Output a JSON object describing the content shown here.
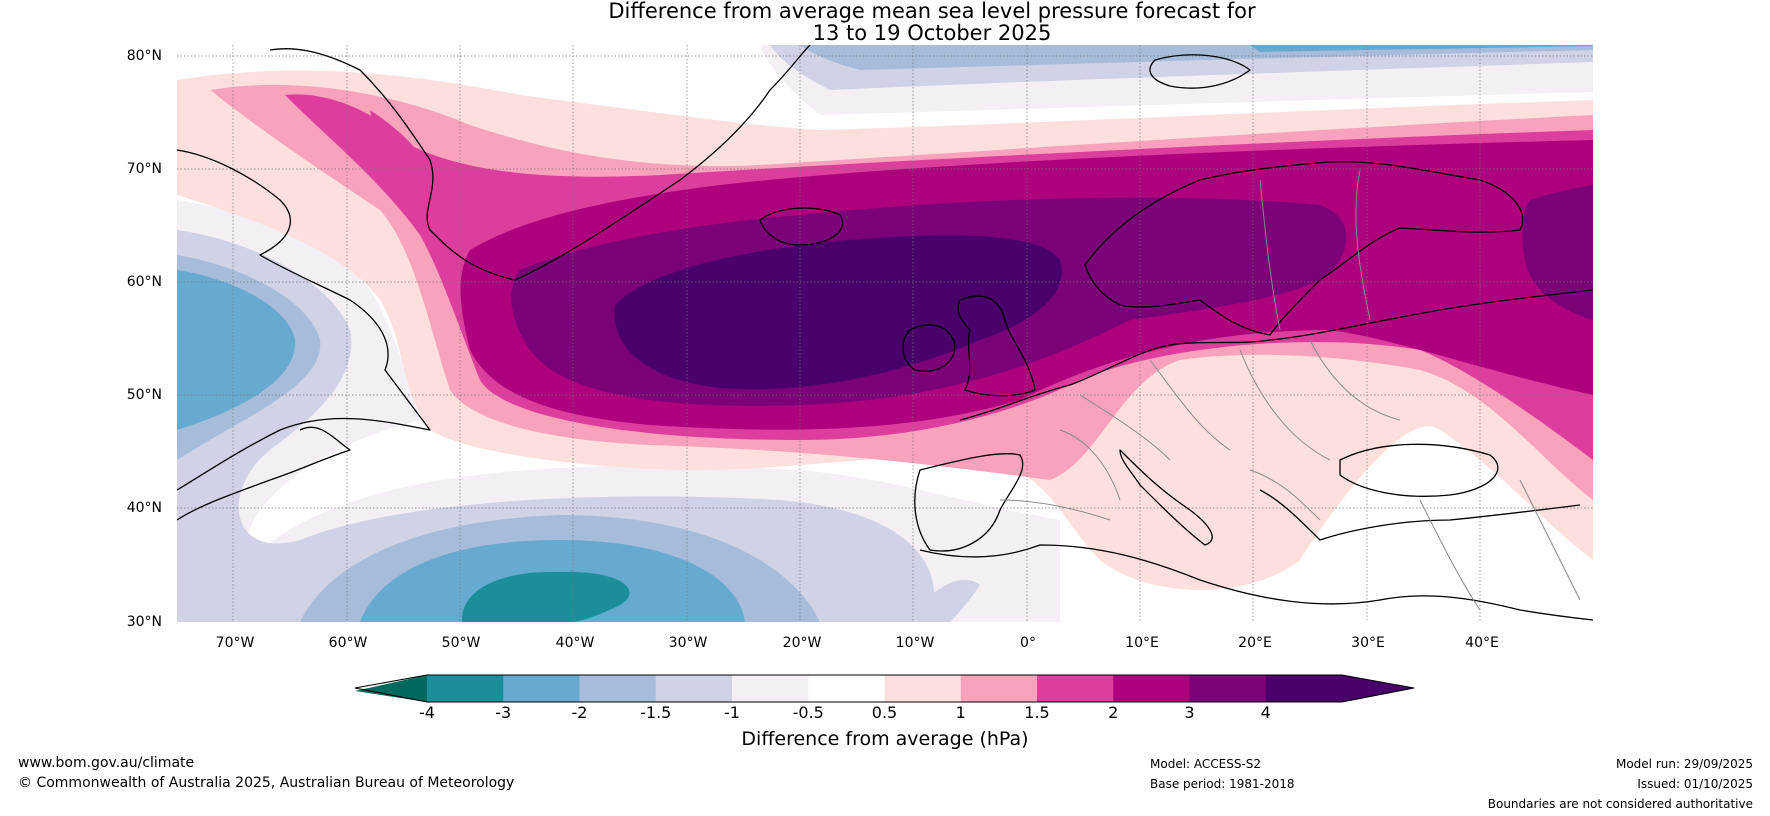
{
  "title": {
    "line1": "Difference from average mean sea level pressure forecast for",
    "line2": "13 to 19 October 2025"
  },
  "map": {
    "lat_labels": [
      "80°N",
      "70°N",
      "60°N",
      "50°N",
      "40°N",
      "30°N"
    ],
    "lon_labels": [
      "70°W",
      "60°W",
      "50°W",
      "40°W",
      "30°W",
      "20°W",
      "10°W",
      "0°",
      "10°E",
      "20°E",
      "30°E",
      "40°E"
    ],
    "extent": {
      "lon_min": -75,
      "lon_max": 50,
      "lat_min": 30,
      "lat_max": 81
    }
  },
  "colorbar": {
    "ticks": [
      "-4",
      "-3",
      "-2",
      "-1.5",
      "-1",
      "-0.5",
      "0.5",
      "1",
      "1.5",
      "2",
      "3",
      "4"
    ],
    "colors": [
      "#1a8f99",
      "#67aad0",
      "#a7bcdb",
      "#d0d2e6",
      "#f3eff5",
      "#ffffff",
      "#fde0dd",
      "#f9a2bb",
      "#dd3e9e",
      "#ad017e",
      "#7a0177",
      "#49006a"
    ],
    "under_color": "#00695d",
    "over_color": "#49006a",
    "label": "Difference from average (hPa)"
  },
  "footer": {
    "website": "www.bom.gov.au/climate",
    "copyright": "© Commonwealth of Australia 2025, Australian Bureau of Meteorology",
    "model": "Model: ACCESS-S2",
    "base_period": "Base period: 1981-2018",
    "model_run": "Model run: 29/09/2025",
    "issued": "Issued: 01/10/2025",
    "disclaimer": "Boundaries are not considered authoritative"
  }
}
